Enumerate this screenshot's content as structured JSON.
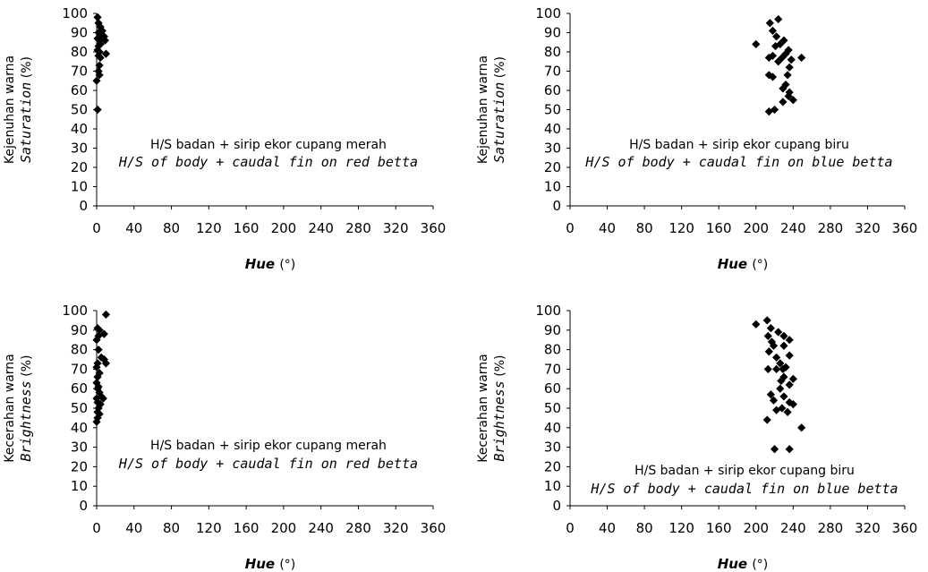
{
  "chart_data": [
    {
      "type": "scatter",
      "ylabel_line1": "Kejenuhan warna",
      "ylabel_line2": "Saturation",
      "ylabel_unit": " (%)",
      "xlabel": "Hue",
      "xlabel_unit": "(°)",
      "annotation_line1": "H/S badan + sirip ekor cupang merah",
      "annotation_line2": "H/S of body + caudal fin on red betta",
      "xlim": [
        0,
        360
      ],
      "ylim": [
        0,
        100
      ],
      "xticks": [
        "0",
        "40",
        "80",
        "120",
        "160",
        "200",
        "240",
        "280",
        "320",
        "360"
      ],
      "yticks": [
        "0",
        "10",
        "20",
        "30",
        "40",
        "50",
        "60",
        "70",
        "80",
        "90",
        "100"
      ],
      "grid": false,
      "points": [
        [
          1,
          98
        ],
        [
          2,
          95
        ],
        [
          4,
          93
        ],
        [
          6,
          91
        ],
        [
          2,
          90
        ],
        [
          5,
          89
        ],
        [
          8,
          88
        ],
        [
          1,
          87
        ],
        [
          3,
          86
        ],
        [
          9,
          86
        ],
        [
          4,
          84
        ],
        [
          2,
          83
        ],
        [
          1,
          81
        ],
        [
          3,
          80
        ],
        [
          10,
          79
        ],
        [
          2,
          78
        ],
        [
          4,
          77
        ],
        [
          3,
          73
        ],
        [
          2,
          70
        ],
        [
          3,
          68
        ],
        [
          0,
          65
        ],
        [
          1,
          50
        ]
      ]
    },
    {
      "type": "scatter",
      "ylabel_line1": "Kejenuhan warna",
      "ylabel_line2": "Saturation",
      "ylabel_unit": " (%)",
      "xlabel": "Hue",
      "xlabel_unit": "(°)",
      "annotation_line1": "H/S badan + sirip ekor cupang biru",
      "annotation_line2": "H/S of body + caudal fin on blue betta",
      "xlim": [
        0,
        360
      ],
      "ylim": [
        0,
        100
      ],
      "xticks": [
        "0",
        "40",
        "80",
        "120",
        "160",
        "200",
        "240",
        "280",
        "320",
        "360"
      ],
      "yticks": [
        "0",
        "10",
        "20",
        "30",
        "40",
        "50",
        "60",
        "70",
        "80",
        "90",
        "100"
      ],
      "grid": false,
      "points": [
        [
          224,
          97
        ],
        [
          215,
          95
        ],
        [
          218,
          91
        ],
        [
          222,
          88
        ],
        [
          230,
          86
        ],
        [
          226,
          84
        ],
        [
          221,
          83
        ],
        [
          235,
          81
        ],
        [
          200,
          84
        ],
        [
          232,
          79
        ],
        [
          218,
          78
        ],
        [
          214,
          77
        ],
        [
          228,
          77
        ],
        [
          238,
          76
        ],
        [
          249,
          77
        ],
        [
          224,
          75
        ],
        [
          236,
          72
        ],
        [
          234,
          68
        ],
        [
          214,
          68
        ],
        [
          218,
          67
        ],
        [
          232,
          63
        ],
        [
          229,
          61
        ],
        [
          236,
          59
        ],
        [
          235,
          57
        ],
        [
          240,
          55
        ],
        [
          229,
          54
        ],
        [
          220,
          50
        ],
        [
          214,
          49
        ]
      ]
    },
    {
      "type": "scatter",
      "ylabel_line1": "Kecerahan warna",
      "ylabel_line2": "Brightness",
      "ylabel_unit": " (%)",
      "xlabel": "Hue",
      "xlabel_unit": "(°)",
      "annotation_line1": "H/S badan + sirip ekor cupang merah",
      "annotation_line2": "H/S of body + caudal fin on red betta",
      "xlim": [
        0,
        360
      ],
      "ylim": [
        0,
        100
      ],
      "xticks": [
        "0",
        "40",
        "80",
        "120",
        "160",
        "200",
        "240",
        "280",
        "320",
        "360"
      ],
      "yticks": [
        "0",
        "10",
        "20",
        "30",
        "40",
        "50",
        "60",
        "70",
        "80",
        "90",
        "100"
      ],
      "grid": false,
      "points": [
        [
          10,
          98
        ],
        [
          1,
          91
        ],
        [
          3,
          90
        ],
        [
          8,
          88
        ],
        [
          2,
          87
        ],
        [
          0,
          85
        ],
        [
          2,
          80
        ],
        [
          5,
          76
        ],
        [
          8,
          75
        ],
        [
          10,
          73
        ],
        [
          1,
          73
        ],
        [
          0,
          71
        ],
        [
          3,
          68
        ],
        [
          1,
          66
        ],
        [
          0,
          63
        ],
        [
          2,
          61
        ],
        [
          1,
          60
        ],
        [
          3,
          58
        ],
        [
          5,
          56
        ],
        [
          7,
          55
        ],
        [
          0,
          55
        ],
        [
          1,
          53
        ],
        [
          4,
          52
        ],
        [
          2,
          50
        ],
        [
          1,
          48
        ],
        [
          3,
          47
        ],
        [
          1,
          45
        ],
        [
          0,
          43
        ]
      ]
    },
    {
      "type": "scatter",
      "ylabel_line1": "Kecerahan warna",
      "ylabel_line2": "Brightness",
      "ylabel_unit": " (%)",
      "xlabel": "Hue",
      "xlabel_unit": "(°)",
      "annotation_line1": "H/S badan + sirip ekor cupang biru",
      "annotation_line2": "H/S of body + caudal fin on blue betta",
      "xlim": [
        0,
        360
      ],
      "ylim": [
        0,
        100
      ],
      "xticks": [
        "0",
        "40",
        "80",
        "120",
        "160",
        "200",
        "240",
        "280",
        "320",
        "360"
      ],
      "yticks": [
        "0",
        "10",
        "20",
        "30",
        "40",
        "50",
        "60",
        "70",
        "80",
        "90",
        "100"
      ],
      "grid": false,
      "points": [
        [
          212,
          95
        ],
        [
          200,
          93
        ],
        [
          216,
          91
        ],
        [
          224,
          89
        ],
        [
          230,
          87
        ],
        [
          213,
          87
        ],
        [
          236,
          85
        ],
        [
          217,
          84
        ],
        [
          219,
          82
        ],
        [
          230,
          82
        ],
        [
          214,
          79
        ],
        [
          236,
          77
        ],
        [
          222,
          76
        ],
        [
          226,
          73
        ],
        [
          232,
          71
        ],
        [
          222,
          70
        ],
        [
          213,
          70
        ],
        [
          229,
          70
        ],
        [
          230,
          66
        ],
        [
          240,
          65
        ],
        [
          227,
          64
        ],
        [
          236,
          62
        ],
        [
          226,
          60
        ],
        [
          216,
          57
        ],
        [
          230,
          56
        ],
        [
          219,
          54
        ],
        [
          236,
          53
        ],
        [
          240,
          52
        ],
        [
          228,
          50
        ],
        [
          222,
          49
        ],
        [
          234,
          48
        ],
        [
          212,
          44
        ],
        [
          249,
          40
        ],
        [
          220,
          29
        ],
        [
          236,
          29
        ]
      ]
    }
  ]
}
